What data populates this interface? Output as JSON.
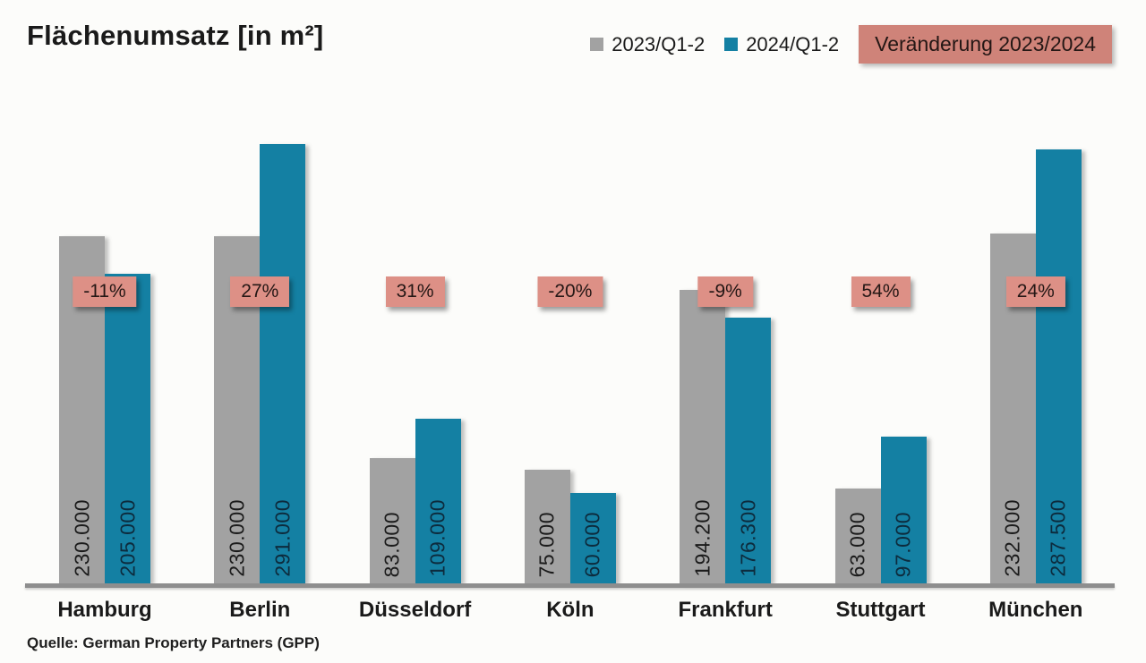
{
  "title": "Flächenumsatz [in m²]",
  "source": "Quelle: German Property Partners (GPP)",
  "legend": {
    "series1_label": "2023/Q1-2",
    "series2_label": "2024/Q1-2",
    "change_badge_label": "Veränderung 2023/2024"
  },
  "colors": {
    "series1": "#A2A2A2",
    "series2": "#1480A3",
    "badge_bg": "#DD9086",
    "legend_badge_bg": "#CF8379",
    "label_on_series1": "#1b1b1b",
    "label_on_series2": "#0d2b3d",
    "axis": "#8E8E8E",
    "background": "#FCFCFA"
  },
  "chart_data": {
    "type": "bar",
    "title": "Flächenumsatz [in m²]",
    "categories": [
      "Hamburg",
      "Berlin",
      "Düsseldorf",
      "Köln",
      "Frankfurt",
      "Stuttgart",
      "München"
    ],
    "series": [
      {
        "name": "2023/Q1-2",
        "values": [
          230000,
          230000,
          83000,
          75000,
          194200,
          63000,
          232000
        ],
        "labels": [
          "230.000",
          "230.000",
          "83.000",
          "75.000",
          "194.200",
          "63.000",
          "232.000"
        ]
      },
      {
        "name": "2024/Q1-2",
        "values": [
          205000,
          291000,
          109000,
          60000,
          176300,
          97000,
          287500
        ],
        "labels": [
          "205.000",
          "291.000",
          "109.000",
          "60.000",
          "176.300",
          "97.000",
          "287.500"
        ]
      }
    ],
    "changes": [
      "-11%",
      "27%",
      "31%",
      "-20%",
      "-9%",
      "54%",
      "24%"
    ],
    "change_series_name": "Veränderung 2023/2024",
    "value_label_rotation": -90,
    "ylim": [
      0,
      300000
    ],
    "grid": false,
    "legend_position": "top-right"
  }
}
